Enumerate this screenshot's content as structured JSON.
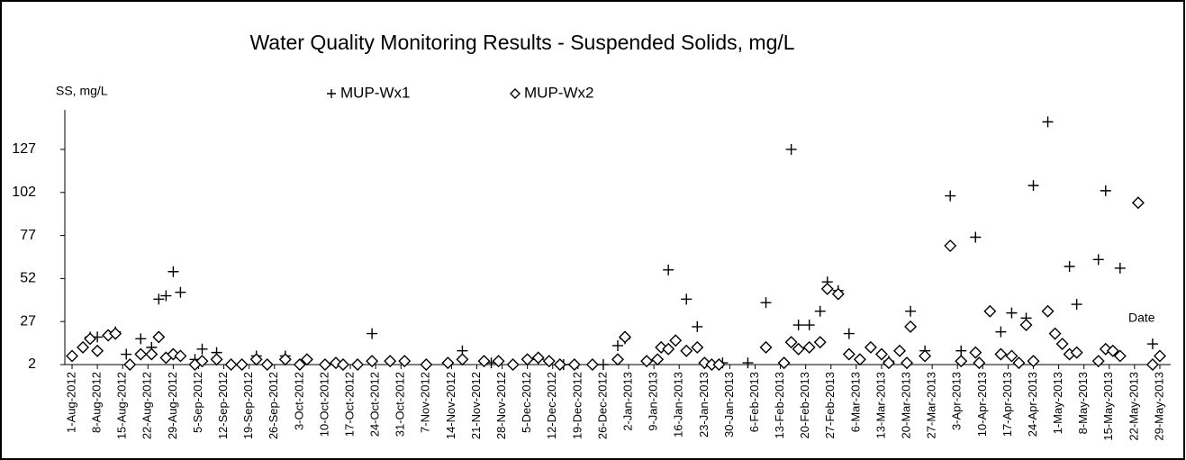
{
  "chart_data": {
    "type": "scatter",
    "title": "Water Quality Monitoring Results - Suspended Solids, mg/L",
    "y_label": "SS, mg/L",
    "x_label": "Date",
    "ylim": [
      2,
      150
    ],
    "yticks": [
      2,
      27,
      52,
      77,
      102,
      127
    ],
    "xlim": [
      "2012-07-30",
      "2013-06-01"
    ],
    "xticks": [
      {
        "value": "2012-08-01",
        "label": "1-Aug-2012"
      },
      {
        "value": "2012-08-08",
        "label": "8-Aug-2012"
      },
      {
        "value": "2012-08-15",
        "label": "15-Aug-2012"
      },
      {
        "value": "2012-08-22",
        "label": "22-Aug-2012"
      },
      {
        "value": "2012-08-29",
        "label": "29-Aug-2012"
      },
      {
        "value": "2012-09-05",
        "label": "5-Sep-2012"
      },
      {
        "value": "2012-09-12",
        "label": "12-Sep-2012"
      },
      {
        "value": "2012-09-19",
        "label": "19-Sep-2012"
      },
      {
        "value": "2012-09-26",
        "label": "26-Sep-2012"
      },
      {
        "value": "2012-10-03",
        "label": "3-Oct-2012"
      },
      {
        "value": "2012-10-10",
        "label": "10-Oct-2012"
      },
      {
        "value": "2012-10-17",
        "label": "17-Oct-2012"
      },
      {
        "value": "2012-10-24",
        "label": "24-Oct-2012"
      },
      {
        "value": "2012-10-31",
        "label": "31-Oct-2012"
      },
      {
        "value": "2012-11-07",
        "label": "7-Nov-2012"
      },
      {
        "value": "2012-11-14",
        "label": "14-Nov-2012"
      },
      {
        "value": "2012-11-21",
        "label": "21-Nov-2012"
      },
      {
        "value": "2012-11-28",
        "label": "28-Nov-2012"
      },
      {
        "value": "2012-12-05",
        "label": "5-Dec-2012"
      },
      {
        "value": "2012-12-12",
        "label": "12-Dec-2012"
      },
      {
        "value": "2012-12-19",
        "label": "19-Dec-2012"
      },
      {
        "value": "2012-12-26",
        "label": "26-Dec-2012"
      },
      {
        "value": "2013-01-02",
        "label": "2-Jan-2013"
      },
      {
        "value": "2013-01-09",
        "label": "9-Jan-2013"
      },
      {
        "value": "2013-01-16",
        "label": "16-Jan-2013"
      },
      {
        "value": "2013-01-23",
        "label": "23-Jan-2013"
      },
      {
        "value": "2013-01-30",
        "label": "30-Jan-2013"
      },
      {
        "value": "2013-02-06",
        "label": "6-Feb-2013"
      },
      {
        "value": "2013-02-13",
        "label": "13-Feb-2013"
      },
      {
        "value": "2013-02-20",
        "label": "20-Feb-2013"
      },
      {
        "value": "2013-02-27",
        "label": "27-Feb-2013"
      },
      {
        "value": "2013-03-06",
        "label": "6-Mar-2013"
      },
      {
        "value": "2013-03-13",
        "label": "13-Mar-2013"
      },
      {
        "value": "2013-03-20",
        "label": "20-Mar-2013"
      },
      {
        "value": "2013-03-27",
        "label": "27-Mar-2013"
      },
      {
        "value": "2013-04-03",
        "label": "3-Apr-2013"
      },
      {
        "value": "2013-04-10",
        "label": "10-Apr-2013"
      },
      {
        "value": "2013-04-17",
        "label": "17-Apr-2013"
      },
      {
        "value": "2013-04-24",
        "label": "24-Apr-2013"
      },
      {
        "value": "2013-05-01",
        "label": "1-May-2013"
      },
      {
        "value": "2013-05-08",
        "label": "8-May-2013"
      },
      {
        "value": "2013-05-15",
        "label": "15-May-2013"
      },
      {
        "value": "2013-05-22",
        "label": "22-May-2013"
      },
      {
        "value": "2013-05-29",
        "label": "29-May-2013"
      }
    ],
    "series": [
      {
        "name": "MUP-Wx1",
        "marker": "plus",
        "color": "#000000",
        "x": [
          "2012-08-01",
          "2012-08-04",
          "2012-08-06",
          "2012-08-08",
          "2012-08-11",
          "2012-08-13",
          "2012-08-16",
          "2012-08-20",
          "2012-08-23",
          "2012-08-25",
          "2012-08-27",
          "2012-08-29",
          "2012-08-31",
          "2012-09-04",
          "2012-09-06",
          "2012-09-10",
          "2012-09-21",
          "2012-09-29",
          "2012-10-05",
          "2012-10-13",
          "2012-10-23",
          "2012-11-01",
          "2012-11-17",
          "2012-11-25",
          "2012-12-08",
          "2012-12-15",
          "2012-12-26",
          "2012-12-30",
          "2013-01-01",
          "2013-01-13",
          "2013-01-18",
          "2013-01-21",
          "2013-01-28",
          "2013-02-04",
          "2013-02-09",
          "2013-02-16",
          "2013-02-18",
          "2013-02-21",
          "2013-02-24",
          "2013-02-26",
          "2013-03-01",
          "2013-03-04",
          "2013-03-15",
          "2013-03-21",
          "2013-03-25",
          "2013-04-01",
          "2013-04-04",
          "2013-04-08",
          "2013-04-15",
          "2013-04-18",
          "2013-04-22",
          "2013-04-24",
          "2013-04-28",
          "2013-05-04",
          "2013-05-06",
          "2013-05-12",
          "2013-05-14",
          "2013-05-18",
          "2013-05-27",
          "2013-05-29"
        ],
        "values": [
          7,
          12,
          18,
          18,
          19,
          21,
          8,
          17,
          12,
          40,
          42,
          56,
          44,
          5,
          11,
          9,
          7,
          7,
          5,
          3,
          20,
          4,
          10,
          3,
          5,
          2,
          2,
          13,
          17,
          57,
          40,
          24,
          3,
          3,
          38,
          127,
          25,
          25,
          33,
          50,
          45,
          20,
          4,
          33,
          10,
          100,
          10,
          76,
          21,
          32,
          29,
          106,
          143,
          59,
          37,
          63,
          103,
          58,
          14,
          7
        ]
      },
      {
        "name": "MUP-Wx2",
        "marker": "diamond",
        "color": "#000000",
        "x": [
          "2012-08-01",
          "2012-08-04",
          "2012-08-06",
          "2012-08-08",
          "2012-08-11",
          "2012-08-13",
          "2012-08-17",
          "2012-08-20",
          "2012-08-23",
          "2012-08-25",
          "2012-08-27",
          "2012-08-29",
          "2012-08-31",
          "2012-09-04",
          "2012-09-06",
          "2012-09-10",
          "2012-09-14",
          "2012-09-17",
          "2012-09-21",
          "2012-09-24",
          "2012-09-29",
          "2012-10-03",
          "2012-10-05",
          "2012-10-10",
          "2012-10-13",
          "2012-10-15",
          "2012-10-19",
          "2012-10-23",
          "2012-10-28",
          "2012-11-01",
          "2012-11-07",
          "2012-11-13",
          "2012-11-17",
          "2012-11-23",
          "2012-11-27",
          "2012-12-01",
          "2012-12-05",
          "2012-12-08",
          "2012-12-11",
          "2012-12-14",
          "2012-12-18",
          "2012-12-23",
          "2012-12-30",
          "2013-01-01",
          "2013-01-07",
          "2013-01-10",
          "2013-01-11",
          "2013-01-13",
          "2013-01-15",
          "2013-01-18",
          "2013-01-21",
          "2013-01-23",
          "2013-01-25",
          "2013-01-27",
          "2013-02-09",
          "2013-02-14",
          "2013-02-16",
          "2013-02-18",
          "2013-02-21",
          "2013-02-24",
          "2013-02-26",
          "2013-03-01",
          "2013-03-04",
          "2013-03-07",
          "2013-03-10",
          "2013-03-13",
          "2013-03-15",
          "2013-03-18",
          "2013-03-20",
          "2013-03-21",
          "2013-03-25",
          "2013-04-01",
          "2013-04-04",
          "2013-04-08",
          "2013-04-09",
          "2013-04-12",
          "2013-04-15",
          "2013-04-18",
          "2013-04-20",
          "2013-04-22",
          "2013-04-24",
          "2013-04-28",
          "2013-04-30",
          "2013-05-02",
          "2013-05-04",
          "2013-05-06",
          "2013-05-12",
          "2013-05-14",
          "2013-05-16",
          "2013-05-18",
          "2013-05-23",
          "2013-05-27",
          "2013-05-29"
        ],
        "values": [
          7,
          12,
          17,
          10,
          19,
          20,
          2,
          8,
          8,
          18,
          6,
          8,
          7,
          2,
          4,
          5,
          2,
          2,
          5,
          2,
          5,
          2,
          5,
          2,
          3,
          2,
          2,
          4,
          4,
          4,
          2,
          3,
          5,
          4,
          4,
          2,
          5,
          6,
          4,
          2,
          2,
          2,
          5,
          18,
          4,
          5,
          12,
          11,
          16,
          10,
          12,
          3,
          2,
          2,
          12,
          3,
          15,
          11,
          12,
          15,
          46,
          43,
          8,
          5,
          12,
          8,
          3,
          10,
          3,
          24,
          7,
          71,
          4,
          9,
          3,
          33,
          8,
          7,
          3,
          25,
          4,
          33,
          20,
          14,
          8,
          9,
          4,
          11,
          10,
          7,
          96,
          2,
          7
        ]
      }
    ]
  }
}
